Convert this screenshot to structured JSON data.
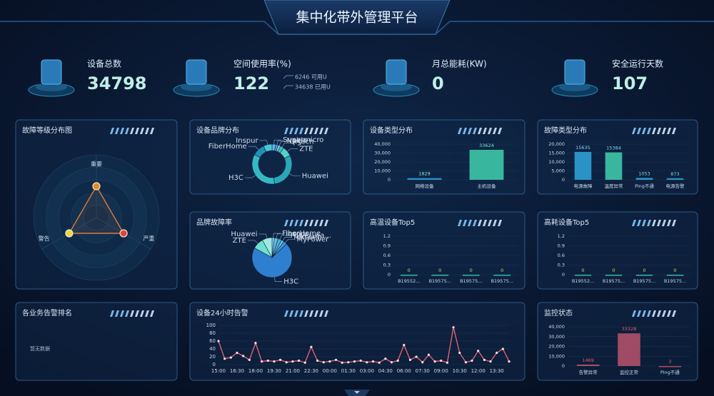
{
  "header": {
    "title": "集中化带外管理平台"
  },
  "stats": [
    {
      "label": "设备总数",
      "value": "34798"
    },
    {
      "label": "空间使用率(%)",
      "value": "122",
      "notes": [
        "6246 可用U",
        "34638 已用U"
      ]
    },
    {
      "label": "月总能耗(KW)",
      "value": "0"
    },
    {
      "label": "安全运行天数",
      "value": "107"
    }
  ],
  "panels": [
    {
      "title": "故障等级分布图",
      "chart_data": {
        "type": "radar",
        "indicators": [
          "重要",
          "严重",
          "警告"
        ],
        "values": [
          1,
          1,
          1
        ],
        "rlim": [
          0,
          2
        ],
        "colors": [
          "#e08a2a",
          "#e0404a",
          "#e6d84a"
        ],
        "color": "#e07a3a"
      }
    },
    {
      "title": "设备品牌分布",
      "chart_data": {
        "type": "donut",
        "labels": [
          "Supermicro",
          "Nokia",
          "Ortech",
          "F5",
          "ZTE",
          "Huawei",
          "H3C",
          "FiberHome",
          "Inspur"
        ],
        "values": [
          3,
          2,
          2,
          3,
          8,
          30,
          35,
          10,
          7
        ],
        "colors": [
          "#5fb8e8",
          "#4aa0d8",
          "#7fd0f0",
          "#3fc0c0",
          "#56d0c8",
          "#2aa6b8",
          "#36b8c4",
          "#1f90b0",
          "#48c8d8"
        ]
      }
    },
    {
      "title": "设备类型分布",
      "chart_data": {
        "type": "bar",
        "categories": [
          "网络设备",
          "主机设备"
        ],
        "values": [
          1829,
          33624
        ],
        "colors": [
          "#2f9fd6",
          "#3ec6a8"
        ],
        "ylim": [
          0,
          40000
        ],
        "yticks": [
          0,
          {
            "value": 10000,
            "label": "10,000"
          },
          {
            "value": 20000,
            "label": "20,000"
          },
          {
            "value": 30000,
            "label": "30,000"
          },
          {
            "value": 40000,
            "label": "40,000"
          }
        ],
        "label_color": "#7fe6d0"
      }
    },
    {
      "title": "故障类型分布",
      "chart_data": {
        "type": "bar",
        "categories": [
          "电源故障",
          "温度异常",
          "Ping不通",
          "电源告警"
        ],
        "values": [
          15635,
          15384,
          1053,
          873
        ],
        "colors": [
          "#2f9fd6",
          "#3ec6a8",
          "#2f9fd6",
          "#2f9fd6"
        ],
        "ylim": [
          0,
          20000
        ],
        "yticks": [
          0,
          {
            "value": 5000,
            "label": "5,000"
          },
          {
            "value": 10000,
            "label": "10,000"
          },
          {
            "value": 15000,
            "label": "15,000"
          },
          {
            "value": 20000,
            "label": "20,000"
          }
        ],
        "label_color": "#7fd6f0"
      }
    },
    {
      "title": "品牌故障率",
      "chart_data": {
        "type": "pie",
        "labels": [
          "FiberHome",
          "Inspur",
          "PowerLea...",
          "foxconn",
          "MyPower",
          "H3C",
          "ZTE",
          "Huawei"
        ],
        "values": [
          2,
          3,
          3,
          2,
          3,
          70,
          9,
          8
        ],
        "colors": [
          "#8fd8f0",
          "#5fc0e8",
          "#4ab0e0",
          "#78c8f0",
          "#3a98d8",
          "#2f7fd0",
          "#6fe0d0",
          "#a0e8e0"
        ]
      }
    },
    {
      "title": "高温设备Top5",
      "chart_data": {
        "type": "bar",
        "categories": [
          "B19552...",
          "B19575...",
          "B19575...",
          "B19575..."
        ],
        "values": [
          0,
          0,
          0,
          0
        ],
        "colors": [
          "#3ec6a8",
          "#3ec6a8",
          "#3ec6a8",
          "#3ec6a8"
        ],
        "ylim": [
          0,
          1.2
        ],
        "yticks": [
          0,
          0.3,
          0.6,
          0.9,
          1.2
        ],
        "label_color": "#d8d060"
      }
    },
    {
      "title": "高耗设备Top5",
      "chart_data": {
        "type": "bar",
        "categories": [
          "B19552...",
          "B19575...",
          "B19575...",
          "B19575..."
        ],
        "values": [
          0,
          0,
          0,
          0
        ],
        "colors": [
          "#3ec6a8",
          "#3ec6a8",
          "#3ec6a8",
          "#3ec6a8"
        ],
        "ylim": [
          0,
          1.2
        ],
        "yticks": [
          0,
          0.3,
          0.6,
          0.9,
          1.2
        ],
        "label_color": "#d8d060"
      }
    },
    {
      "title": "各业务告警排名",
      "message": "暂无数据"
    },
    {
      "title": "设备24小时告警",
      "chart_data": {
        "type": "line",
        "color": "#e06070",
        "categories": [
          "15:00",
          null,
          null,
          "16:30",
          null,
          null,
          "18:00",
          null,
          null,
          "19:30",
          null,
          null,
          "21:00",
          null,
          null,
          "22:30",
          null,
          null,
          "00:00",
          null,
          null,
          "01:30",
          null,
          null,
          "03:00",
          null,
          null,
          "04:30",
          null,
          null,
          "06:00",
          null,
          null,
          "07:30",
          null,
          null,
          "09:00",
          null,
          null,
          "10:30",
          null,
          null,
          "12:00",
          null,
          null,
          "13:30",
          null,
          null
        ],
        "values": [
          60,
          15,
          18,
          30,
          22,
          12,
          55,
          8,
          10,
          8,
          12,
          6,
          8,
          10,
          5,
          45,
          10,
          6,
          8,
          12,
          5,
          6,
          8,
          10,
          6,
          8,
          5,
          15,
          6,
          10,
          50,
          12,
          20,
          6,
          25,
          8,
          10,
          5,
          95,
          30,
          6,
          10,
          35,
          12,
          8,
          30,
          40,
          8
        ],
        "ylim": [
          0,
          100
        ],
        "yticks": [
          0,
          20,
          40,
          60,
          80,
          100
        ],
        "grid": true
      }
    },
    {
      "title": "监控状态",
      "chart_data": {
        "type": "bar",
        "categories": [
          "告警异常",
          "监控正常",
          "Ping不通"
        ],
        "values": [
          1469,
          33328,
          3
        ],
        "colors": [
          "#c0506a",
          "#b0506a",
          "#c0506a"
        ],
        "ylim": [
          0,
          40000
        ],
        "yticks": [
          0,
          {
            "value": 10000,
            "label": "10,000"
          },
          {
            "value": 20000,
            "label": "20,000"
          },
          {
            "value": 30000,
            "label": "30,000"
          },
          {
            "value": 40000,
            "label": "40,000"
          }
        ],
        "label_color": "#e06070"
      }
    }
  ]
}
